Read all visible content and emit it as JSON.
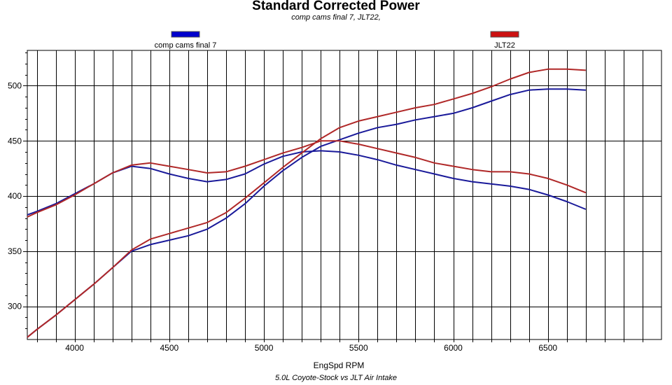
{
  "chart_data": {
    "type": "line",
    "title": "Standard Corrected Power",
    "subtitle": "comp cams final 7,  JLT22,",
    "caption": "5.0L Coyote-Stock vs JLT Air Intake",
    "xlabel": "EngSpd RPM",
    "ylabel": "",
    "xlim": [
      3750,
      7100
    ],
    "ylim": [
      270,
      532
    ],
    "xticks": [
      4000,
      4500,
      5000,
      5500,
      6000,
      6500
    ],
    "yticks": [
      300,
      350,
      400,
      450,
      500
    ],
    "grid": true,
    "legend_position": "top",
    "series": [
      {
        "name": "comp cams final 7",
        "color": "#1a1a9a",
        "legend_color": "#0000cc",
        "curves": [
          {
            "x": [
              3750,
              3800,
              3900,
              4000,
              4100,
              4200,
              4300,
              4400,
              4500,
              4600,
              4700,
              4800,
              4900,
              5000,
              5100,
              5200,
              5300,
              5400,
              5500,
              5600,
              5700,
              5800,
              5900,
              6000,
              6100,
              6200,
              6300,
              6400,
              6500,
              6600,
              6700
            ],
            "y": [
              383,
              386,
              393,
              402,
              411,
              421,
              427,
              425,
              420,
              416,
              413,
              415,
              420,
              429,
              436,
              440,
              441,
              440,
              437,
              433,
              428,
              424,
              420,
              416,
              413,
              411,
              409,
              406,
              401,
              395,
              388
            ]
          },
          {
            "x": [
              3750,
              3800,
              3900,
              4000,
              4100,
              4200,
              4300,
              4400,
              4500,
              4600,
              4700,
              4800,
              4900,
              5000,
              5100,
              5200,
              5300,
              5400,
              5500,
              5600,
              5700,
              5800,
              5900,
              6000,
              6100,
              6200,
              6300,
              6400,
              6500,
              6600,
              6700
            ],
            "y": [
              272,
              279,
              292,
              306,
              320,
              335,
              350,
              356,
              360,
              364,
              370,
              380,
              393,
              409,
              423,
              435,
              445,
              451,
              457,
              462,
              465,
              469,
              472,
              475,
              480,
              486,
              492,
              496,
              497,
              497,
              496
            ]
          }
        ]
      },
      {
        "name": "JLT22",
        "color": "#b02828",
        "legend_color": "#cc1111",
        "curves": [
          {
            "x": [
              3750,
              3800,
              3900,
              4000,
              4100,
              4200,
              4300,
              4400,
              4500,
              4600,
              4700,
              4800,
              4900,
              5000,
              5100,
              5200,
              5300,
              5400,
              5500,
              5600,
              5700,
              5800,
              5900,
              6000,
              6100,
              6200,
              6300,
              6400,
              6500,
              6600,
              6700
            ],
            "y": [
              381,
              385,
              392,
              401,
              411,
              421,
              428,
              430,
              427,
              424,
              421,
              422,
              427,
              433,
              439,
              444,
              450,
              450,
              447,
              443,
              439,
              435,
              430,
              427,
              424,
              422,
              422,
              420,
              416,
              410,
              403
            ]
          },
          {
            "x": [
              3750,
              3800,
              3900,
              4000,
              4100,
              4200,
              4300,
              4400,
              4500,
              4600,
              4700,
              4800,
              4900,
              5000,
              5100,
              5200,
              5300,
              5400,
              5500,
              5600,
              5700,
              5800,
              5900,
              6000,
              6100,
              6200,
              6300,
              6400,
              6500,
              6600,
              6700
            ],
            "y": [
              272,
              279,
              292,
              306,
              320,
              335,
              351,
              361,
              366,
              371,
              376,
              385,
              398,
              412,
              426,
              439,
              452,
              462,
              468,
              472,
              476,
              480,
              483,
              488,
              493,
              499,
              506,
              512,
              515,
              515,
              514
            ]
          }
        ]
      }
    ]
  }
}
